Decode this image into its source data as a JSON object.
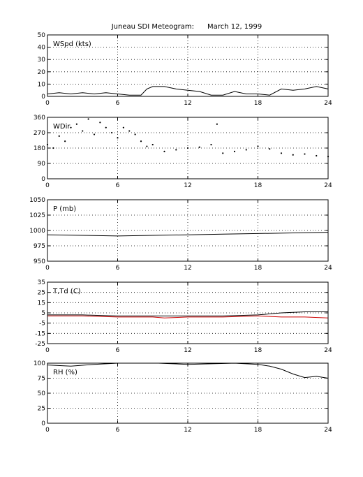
{
  "title": "Juneau SDI Meteogram:      March 12, 1999",
  "colors": {
    "series": "#000000",
    "dewpoint": "#cc0000",
    "grid": "#000000"
  },
  "chart_data": [
    {
      "type": "line",
      "label": "WSpd (kts)",
      "xlim": [
        0,
        24
      ],
      "xticks": [
        "0",
        "6",
        "12",
        "18",
        "24"
      ],
      "ylim": [
        0,
        50
      ],
      "yticks": [
        "0",
        "10",
        "20",
        "30",
        "40",
        "50"
      ],
      "grid": true,
      "series": [
        {
          "x": [
            0,
            1,
            2,
            3,
            4,
            5,
            6,
            7,
            8,
            8.5,
            9,
            10,
            11,
            12,
            13,
            14,
            15,
            16,
            17,
            18,
            19,
            20,
            21,
            22,
            23,
            24
          ],
          "values": [
            2,
            3,
            2,
            3,
            2,
            3,
            2,
            1,
            1,
            6,
            8,
            8,
            6,
            5,
            4,
            1,
            1,
            4,
            2,
            2,
            1,
            6,
            5,
            6,
            8,
            6
          ]
        }
      ]
    },
    {
      "type": "scatter",
      "label": "WDir",
      "xlim": [
        0,
        24
      ],
      "xticks": [
        "0",
        "6",
        "12",
        "18",
        "24"
      ],
      "ylim": [
        0,
        360
      ],
      "yticks": [
        "0",
        "90",
        "180",
        "270",
        "360"
      ],
      "grid": true,
      "series": [
        {
          "x": [
            0,
            0.5,
            1,
            1.5,
            2,
            2.5,
            3,
            3.5,
            4,
            4.5,
            5,
            5.5,
            6,
            6.5,
            7,
            7.5,
            8,
            8.5,
            9,
            10,
            11,
            12,
            13,
            14,
            14.5,
            15,
            16,
            17,
            18,
            19,
            20,
            21,
            22,
            23,
            24
          ],
          "values": [
            200,
            180,
            250,
            220,
            300,
            320,
            280,
            350,
            260,
            330,
            300,
            270,
            240,
            300,
            280,
            260,
            220,
            190,
            200,
            160,
            170,
            180,
            185,
            200,
            320,
            150,
            160,
            170,
            190,
            175,
            150,
            140,
            145,
            135,
            130
          ]
        }
      ]
    },
    {
      "type": "line",
      "label": "P (mb)",
      "xlim": [
        0,
        24
      ],
      "xticks": [
        "0",
        "6",
        "12",
        "18",
        "24"
      ],
      "ylim": [
        950,
        1050
      ],
      "yticks": [
        "950",
        "975",
        "1000",
        "1025",
        "1050"
      ],
      "grid": true,
      "series": [
        {
          "x": [
            0,
            3,
            6,
            9,
            12,
            15,
            18,
            21,
            24
          ],
          "values": [
            993,
            992,
            991,
            992,
            993,
            994,
            995,
            996,
            997
          ]
        }
      ]
    },
    {
      "type": "line",
      "label": "T,Td (C)",
      "xlim": [
        0,
        24
      ],
      "xticks": [
        "0",
        "6",
        "12",
        "18",
        "24"
      ],
      "ylim": [
        -25,
        35
      ],
      "yticks": [
        "-25",
        "-15",
        "-5",
        "5",
        "15",
        "25",
        "35"
      ],
      "grid": true,
      "series": [
        {
          "x": [
            0,
            3,
            6,
            9,
            12,
            15,
            18,
            20,
            22,
            24
          ],
          "values": [
            3,
            3,
            2,
            2,
            2,
            2,
            3,
            5,
            6,
            6
          ]
        },
        {
          "x": [
            0,
            3,
            6,
            9,
            10,
            12,
            15,
            18,
            20,
            22,
            24
          ],
          "values": [
            2,
            2,
            1,
            1,
            0,
            1,
            1,
            2,
            1,
            1,
            0
          ]
        }
      ]
    },
    {
      "type": "line",
      "label": "RH (%)",
      "xlim": [
        0,
        24
      ],
      "xticks": [
        "0",
        "6",
        "12",
        "18",
        "24"
      ],
      "ylim": [
        0,
        100
      ],
      "yticks": [
        "0",
        "25",
        "50",
        "75",
        "100"
      ],
      "grid": true,
      "series": [
        {
          "x": [
            0,
            2,
            4,
            6,
            9.5,
            12,
            14,
            16,
            18,
            19,
            20,
            21,
            22,
            23,
            24
          ],
          "values": [
            97,
            95,
            98,
            100,
            100,
            98,
            99,
            100,
            98,
            95,
            90,
            82,
            76,
            78,
            75
          ]
        }
      ]
    }
  ]
}
